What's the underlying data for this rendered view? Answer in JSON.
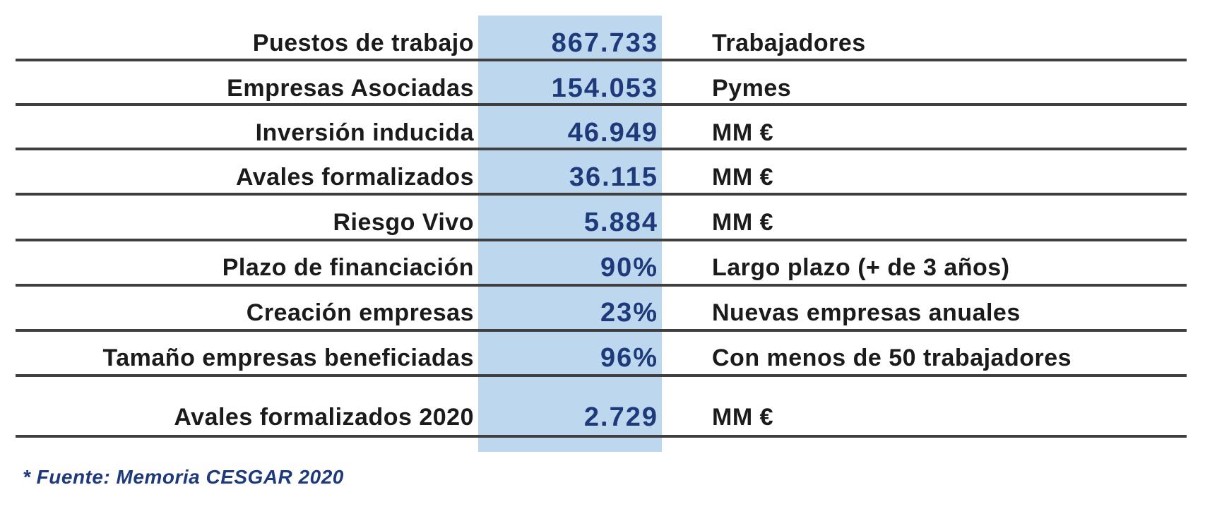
{
  "rows": [
    {
      "label": "Puestos de trabajo",
      "value": "867.733",
      "unit": "Trabajadores"
    },
    {
      "label": "Empresas Asociadas",
      "value": "154.053",
      "unit": "Pymes"
    },
    {
      "label": "Inversión inducida",
      "value": "46.949",
      "unit": "MM €"
    },
    {
      "label": "Avales formalizados",
      "value": "36.115",
      "unit": "MM €"
    },
    {
      "label": "Riesgo Vivo",
      "value": "5.884",
      "unit": "MM €"
    },
    {
      "label": "Plazo de financiación",
      "value": "90%",
      "unit": "Largo plazo (+ de 3 años)"
    },
    {
      "label": "Creación empresas",
      "value": "23%",
      "unit": "Nuevas empresas anuales"
    },
    {
      "label": "Tamaño empresas beneficiadas",
      "value": "96%",
      "unit": "Con menos de 50 trabajadores"
    },
    {
      "label": "Avales formalizados 2020",
      "value": "2.729",
      "unit": "MM €"
    }
  ],
  "source_note": "* Fuente: Memoria CESGAR 2020",
  "colors": {
    "value_column_bg": "#bcd7ee",
    "value_text": "#1f3a7a",
    "label_text": "#1b1b1b",
    "divider": "#3f3f3f",
    "source_text": "#1f3a7a"
  }
}
